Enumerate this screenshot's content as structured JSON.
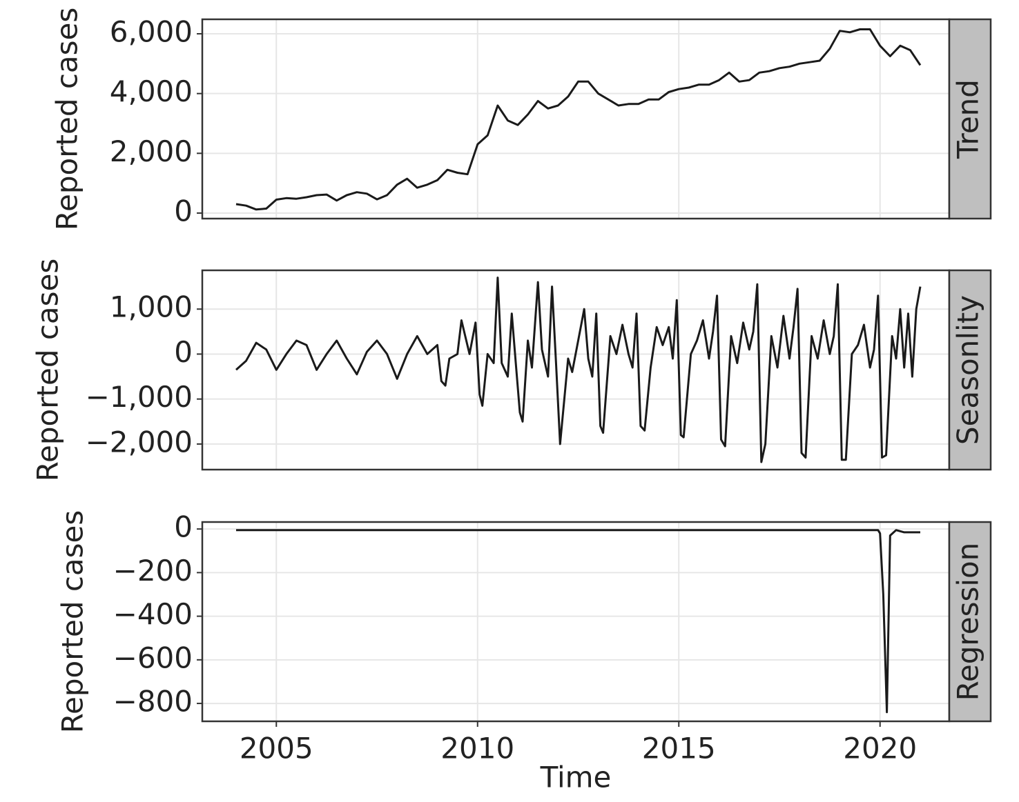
{
  "chart_data": [
    {
      "type": "line",
      "facet_label": "Trend",
      "ylabel": "Reported cases",
      "xlim": [
        2003.16,
        2021.72
      ],
      "xticks": [
        2005,
        2010,
        2015,
        2020
      ],
      "ylim": [
        -185,
        6485
      ],
      "yticks": [
        0,
        {
          "value": 2000,
          "label": "2,000"
        },
        {
          "value": 4000,
          "label": "4,000"
        },
        {
          "value": 6000,
          "label": "6,000"
        }
      ],
      "grid": true,
      "color": "#1a1a1a",
      "x": [
        2004.0,
        2004.25,
        2004.5,
        2004.75,
        2005.0,
        2005.25,
        2005.5,
        2005.75,
        2006.0,
        2006.25,
        2006.5,
        2006.75,
        2007.0,
        2007.25,
        2007.5,
        2007.75,
        2008.0,
        2008.25,
        2008.5,
        2008.75,
        2009.0,
        2009.25,
        2009.5,
        2009.75,
        2010.0,
        2010.25,
        2010.5,
        2010.75,
        2011.0,
        2011.25,
        2011.5,
        2011.75,
        2012.0,
        2012.25,
        2012.5,
        2012.75,
        2013.0,
        2013.25,
        2013.5,
        2013.75,
        2014.0,
        2014.25,
        2014.5,
        2014.75,
        2015.0,
        2015.25,
        2015.5,
        2015.75,
        2016.0,
        2016.25,
        2016.5,
        2016.75,
        2017.0,
        2017.25,
        2017.5,
        2017.75,
        2018.0,
        2018.25,
        2018.5,
        2018.75,
        2019.0,
        2019.25,
        2019.5,
        2019.75,
        2020.0,
        2020.25,
        2020.5,
        2020.75,
        2021.0
      ],
      "values": [
        300,
        250,
        120,
        150,
        450,
        500,
        480,
        530,
        600,
        620,
        420,
        600,
        700,
        650,
        460,
        600,
        950,
        1150,
        850,
        950,
        1100,
        1450,
        1350,
        1300,
        2300,
        2600,
        3600,
        3100,
        2950,
        3300,
        3750,
        3500,
        3600,
        3900,
        4400,
        4400,
        4000,
        3800,
        3600,
        3650,
        3650,
        3800,
        3800,
        4050,
        4150,
        4200,
        4300,
        4300,
        4450,
        4700,
        4400,
        4450,
        4700,
        4750,
        4850,
        4900,
        5000,
        5050,
        5100,
        5500,
        6100,
        6050,
        6150,
        6150,
        5600,
        5250,
        5600,
        5450,
        4950
      ]
    },
    {
      "type": "line",
      "facet_label": "Seasonlity",
      "ylabel": "Reported cases",
      "xlim": [
        2003.16,
        2021.72
      ],
      "xticks": [
        2005,
        2010,
        2015,
        2020
      ],
      "ylim": [
        -2569,
        1862
      ],
      "yticks": [
        {
          "value": -2000,
          "label": "−2,000"
        },
        {
          "value": -1000,
          "label": "−1,000"
        },
        0,
        {
          "value": 1000,
          "label": "1,000"
        }
      ],
      "grid": true,
      "color": "#1a1a1a",
      "x": [
        2004.0,
        2004.25,
        2004.5,
        2004.75,
        2005.0,
        2005.25,
        2005.5,
        2005.75,
        2006.0,
        2006.25,
        2006.5,
        2006.75,
        2007.0,
        2007.25,
        2007.5,
        2007.75,
        2008.0,
        2008.25,
        2008.5,
        2008.75,
        2009.0,
        2009.1,
        2009.2,
        2009.3,
        2009.5,
        2009.6,
        2009.8,
        2009.95,
        2010.05,
        2010.12,
        2010.25,
        2010.4,
        2010.5,
        2010.6,
        2010.75,
        2010.85,
        2010.95,
        2011.05,
        2011.12,
        2011.25,
        2011.35,
        2011.5,
        2011.6,
        2011.75,
        2011.85,
        2011.95,
        2012.05,
        2012.25,
        2012.35,
        2012.5,
        2012.65,
        2012.75,
        2012.85,
        2012.95,
        2013.05,
        2013.12,
        2013.3,
        2013.45,
        2013.6,
        2013.75,
        2013.85,
        2013.95,
        2014.05,
        2014.15,
        2014.3,
        2014.45,
        2014.6,
        2014.75,
        2014.85,
        2014.95,
        2015.05,
        2015.12,
        2015.3,
        2015.45,
        2015.6,
        2015.75,
        2015.85,
        2015.95,
        2016.05,
        2016.15,
        2016.3,
        2016.45,
        2016.6,
        2016.75,
        2016.85,
        2016.95,
        2017.05,
        2017.15,
        2017.3,
        2017.45,
        2017.6,
        2017.75,
        2017.85,
        2017.95,
        2018.05,
        2018.15,
        2018.3,
        2018.45,
        2018.6,
        2018.75,
        2018.85,
        2018.95,
        2019.05,
        2019.15,
        2019.3,
        2019.45,
        2019.6,
        2019.75,
        2019.85,
        2019.95,
        2020.05,
        2020.15,
        2020.3,
        2020.4,
        2020.5,
        2020.6,
        2020.7,
        2020.8,
        2020.9,
        2021.0
      ],
      "values": [
        -350,
        -150,
        250,
        100,
        -350,
        0,
        300,
        200,
        -350,
        0,
        300,
        -100,
        -450,
        50,
        300,
        0,
        -550,
        0,
        400,
        0,
        200,
        -600,
        -700,
        -100,
        0,
        750,
        0,
        700,
        -900,
        -1150,
        0,
        -200,
        1700,
        -200,
        -500,
        900,
        -200,
        -1300,
        -1500,
        300,
        -300,
        1600,
        100,
        -500,
        1500,
        -200,
        -2000,
        -100,
        -400,
        300,
        1000,
        -100,
        -500,
        900,
        -1600,
        -1750,
        400,
        0,
        650,
        0,
        -300,
        900,
        -1600,
        -1700,
        -300,
        600,
        200,
        600,
        -100,
        1200,
        -1800,
        -1850,
        0,
        300,
        750,
        -100,
        500,
        1300,
        -1900,
        -2050,
        400,
        -200,
        700,
        100,
        500,
        1550,
        -2400,
        -2000,
        400,
        -300,
        850,
        -100,
        600,
        1450,
        -2200,
        -2300,
        400,
        -100,
        750,
        0,
        400,
        1550,
        -2350,
        -2350,
        0,
        200,
        650,
        -300,
        100,
        1300,
        -2300,
        -2250,
        400,
        -100,
        1000,
        -300,
        900,
        -500,
        1000,
        1500
      ]
    },
    {
      "type": "line",
      "facet_label": "Regression",
      "ylabel": "Reported cases",
      "xlabel": "Time",
      "xlim": [
        2003.16,
        2021.72
      ],
      "xticks": [
        2005,
        2010,
        2015,
        2020
      ],
      "ylim": [
        -882,
        32
      ],
      "yticks": [
        {
          "value": -800,
          "label": "−800"
        },
        {
          "value": -600,
          "label": "−600"
        },
        {
          "value": -400,
          "label": "−400"
        },
        {
          "value": -200,
          "label": "−200"
        },
        0
      ],
      "grid": true,
      "color": "#1a1a1a",
      "x": [
        2004.0,
        2019.95,
        2020.0,
        2020.08,
        2020.17,
        2020.25,
        2020.4,
        2020.6,
        2021.0
      ],
      "values": [
        -5,
        -5,
        -20,
        -300,
        -840,
        -30,
        -5,
        -15,
        -15
      ]
    }
  ]
}
